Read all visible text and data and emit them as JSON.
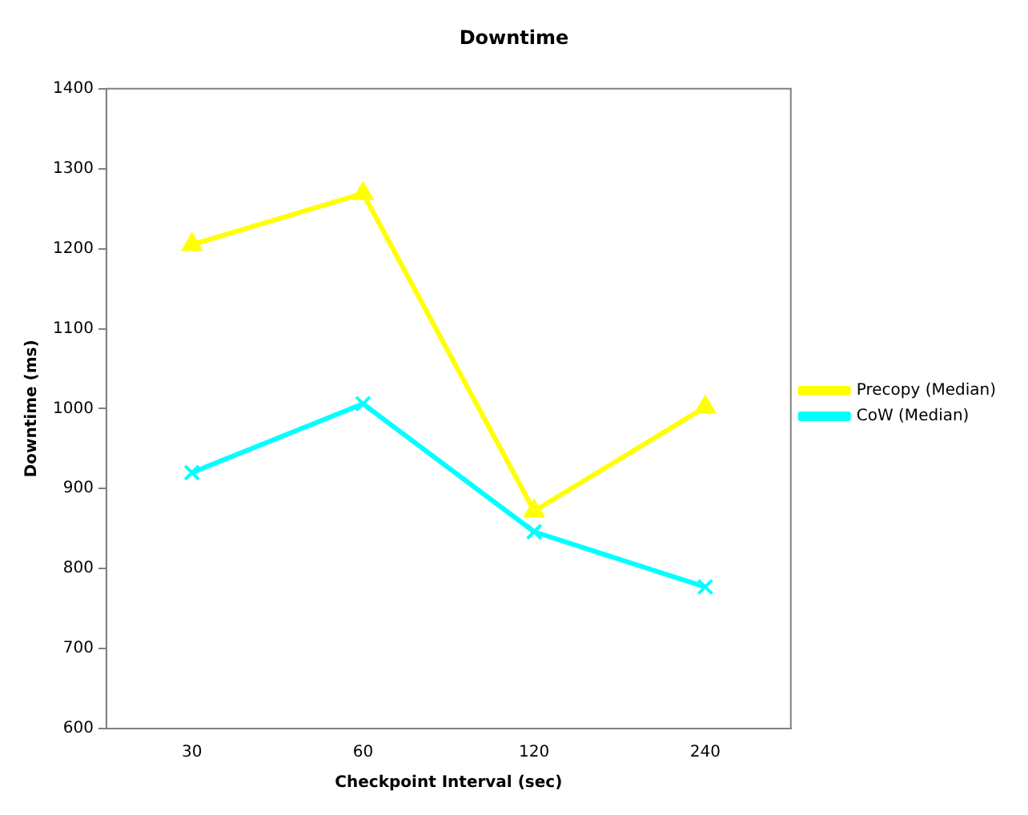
{
  "chart_data": {
    "type": "line",
    "title": "Downtime",
    "xlabel": "Checkpoint Interval (sec)",
    "ylabel": "Downtime (ms)",
    "categories": [
      "30",
      "60",
      "120",
      "240"
    ],
    "series": [
      {
        "name": "Precopy (Median)",
        "color": "#ffff00",
        "marker": "triangle",
        "values": [
          1205,
          1269,
          872,
          1002
        ]
      },
      {
        "name": "CoW (Median)",
        "color": "#00ffff",
        "marker": "cross",
        "values": [
          920,
          1006,
          846,
          777
        ]
      }
    ],
    "ylim": [
      600,
      1400
    ],
    "yticks": [
      600,
      700,
      800,
      900,
      1000,
      1100,
      1200,
      1300,
      1400
    ],
    "grid": false,
    "legend": "right"
  }
}
